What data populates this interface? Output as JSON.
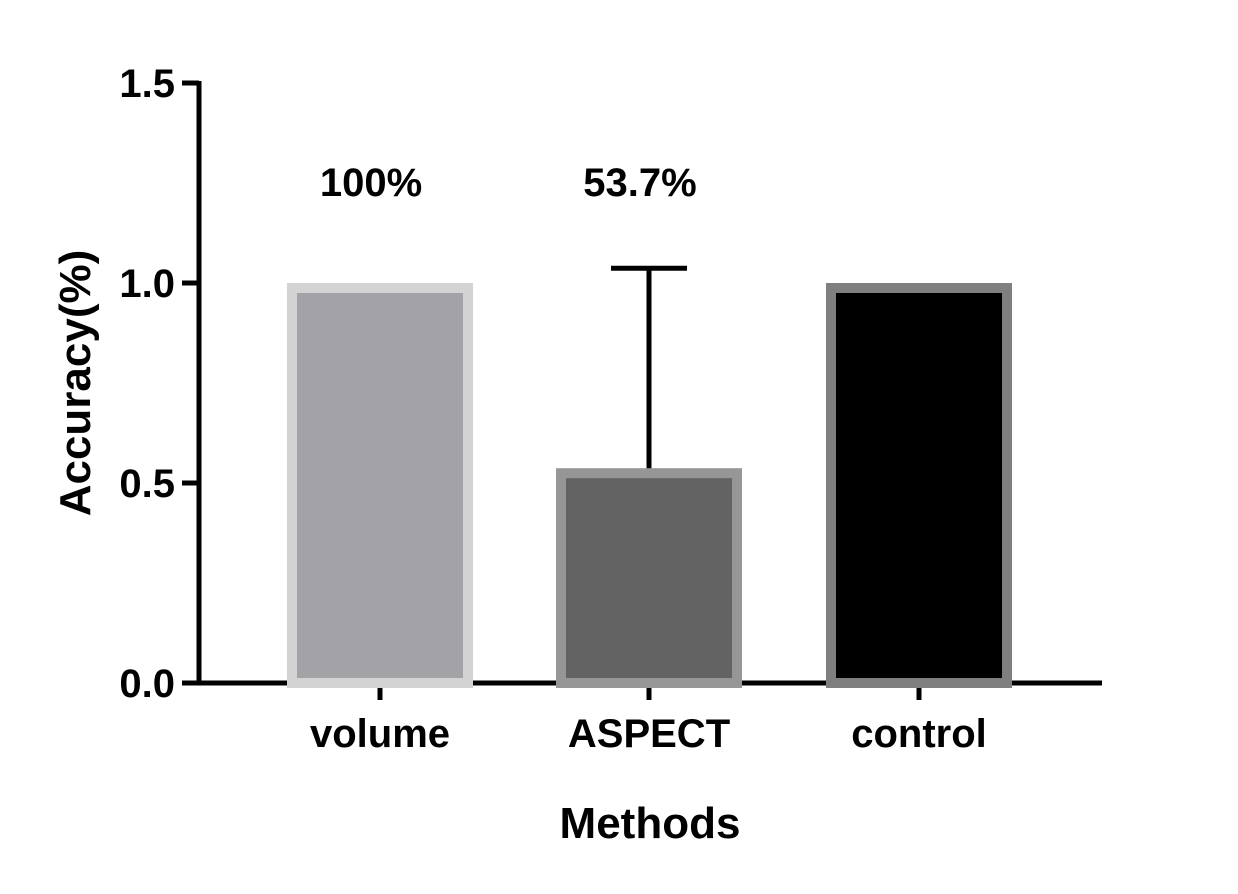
{
  "chart_data": {
    "type": "bar",
    "title": "",
    "xlabel": "Methods",
    "ylabel": "Accuracy(%)",
    "ylim": [
      0,
      1.5
    ],
    "yticks": [
      "0.0",
      "0.5",
      "1.0",
      "1.5"
    ],
    "ytick_values": [
      0,
      0.5,
      1.0,
      1.5
    ],
    "categories": [
      "volume",
      "ASPECT",
      "control"
    ],
    "values": [
      1.0,
      0.537,
      1.0
    ],
    "error_upper": [
      null,
      0.5,
      null
    ],
    "annotations": [
      "100%",
      "53.7%",
      ""
    ],
    "bar_fill_colors": [
      "#a3a2a7",
      "#636363",
      "#000000"
    ],
    "bar_edge_colors": [
      "#d3d3d3",
      "#969696",
      "#7f7f7f"
    ],
    "grid": false,
    "legend": "none"
  }
}
